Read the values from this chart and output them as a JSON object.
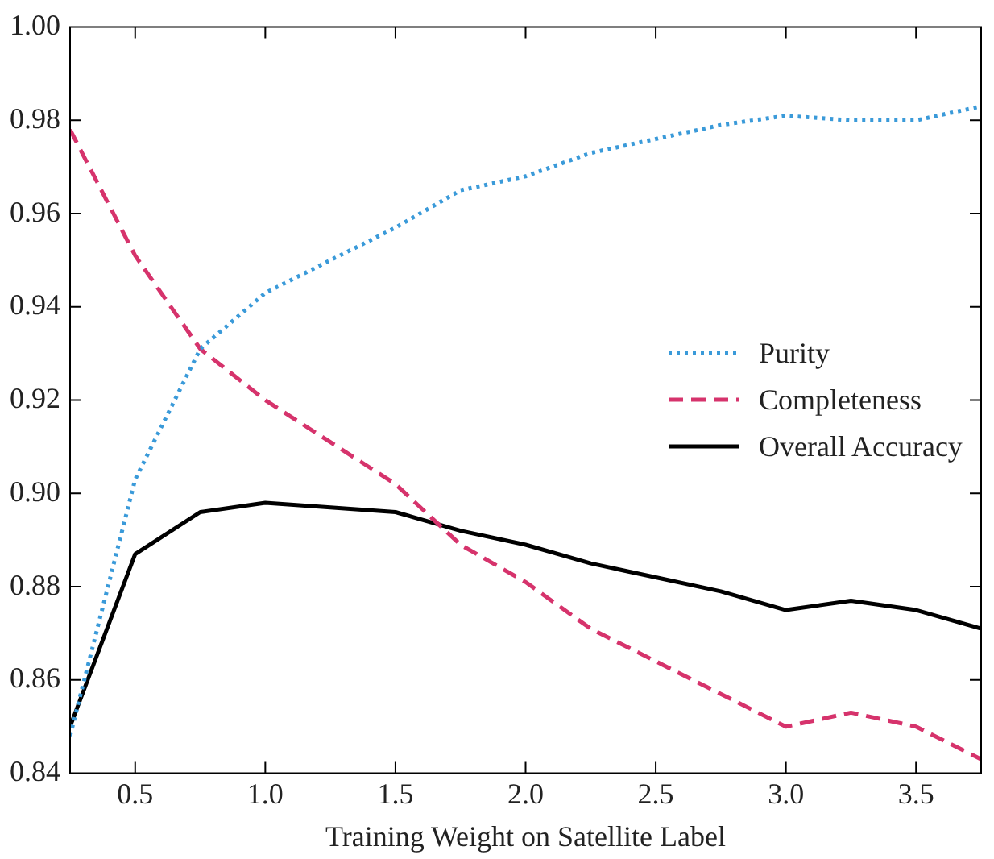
{
  "chart_data": {
    "type": "line",
    "xlabel": "Training Weight on Satellite Label",
    "x": [
      0.25,
      0.5,
      0.75,
      1.0,
      1.25,
      1.5,
      1.75,
      2.0,
      2.25,
      2.5,
      2.75,
      3.0,
      3.25,
      3.5,
      3.75
    ],
    "series": [
      {
        "name": "Purity",
        "color": "#3a9ad9",
        "line_style": "dotted",
        "values": [
          0.848,
          0.903,
          0.931,
          0.943,
          0.95,
          0.957,
          0.965,
          0.968,
          0.973,
          0.976,
          0.979,
          0.981,
          0.98,
          0.98,
          0.983
        ]
      },
      {
        "name": "Completeness",
        "color": "#d6336c",
        "line_style": "dashed",
        "values": [
          0.978,
          0.951,
          0.931,
          0.92,
          0.911,
          0.902,
          0.889,
          0.881,
          0.871,
          0.864,
          0.857,
          0.85,
          0.853,
          0.85,
          0.843
        ]
      },
      {
        "name": "Overall Accuracy",
        "color": "#000000",
        "line_style": "solid",
        "values": [
          0.85,
          0.887,
          0.896,
          0.898,
          0.897,
          0.896,
          0.892,
          0.889,
          0.885,
          0.882,
          0.879,
          0.875,
          0.877,
          0.875,
          0.871
        ]
      }
    ],
    "xlim": [
      0.25,
      3.75
    ],
    "xticks": [
      0.5,
      {
        "value": 1.0,
        "label": "1.0"
      },
      1.5,
      {
        "value": 2.0,
        "label": "2.0"
      },
      2.5,
      {
        "value": 3.0,
        "label": "3.0"
      },
      3.5
    ],
    "ylim": [
      0.84,
      1.0
    ],
    "yticks": [
      0.84,
      0.86,
      0.88,
      {
        "value": 0.9,
        "label": "0.90"
      },
      0.92,
      0.94,
      0.96,
      0.98,
      {
        "value": 1.0,
        "label": "1.00"
      }
    ],
    "grid": false,
    "legend": "right",
    "marker": "none"
  }
}
